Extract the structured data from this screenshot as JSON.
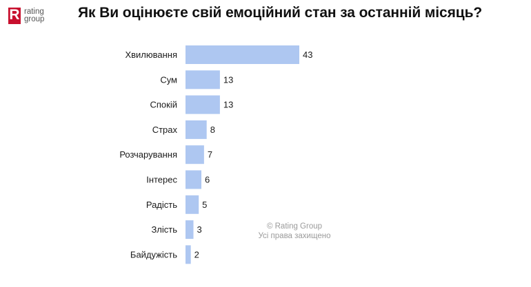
{
  "header": {
    "logo_text_line1": "rating",
    "logo_text_line2": "group",
    "title": "Як Ви оцінюєте свій емоційний стан за останній місяць?"
  },
  "watermark": {
    "line1": "© Rating Group",
    "line2": "Усі права захищено"
  },
  "colors": {
    "bar": "#aec7f1",
    "text": "#1a1a1a",
    "logo": "#c8102e"
  },
  "chart_data": {
    "type": "bar",
    "orientation": "horizontal",
    "title": "Як Ви оцінюєте свій емоційний стан за останній місяць?",
    "categories": [
      "Хвилювання",
      "Сум",
      "Спокій",
      "Страх",
      "Розчарування",
      "Інтерес",
      "Радість",
      "Злість",
      "Байдужість"
    ],
    "values": [
      43,
      13,
      13,
      8,
      7,
      6,
      5,
      3,
      2
    ],
    "xlim": [
      0,
      43
    ],
    "grid": false,
    "data_labels": true
  }
}
